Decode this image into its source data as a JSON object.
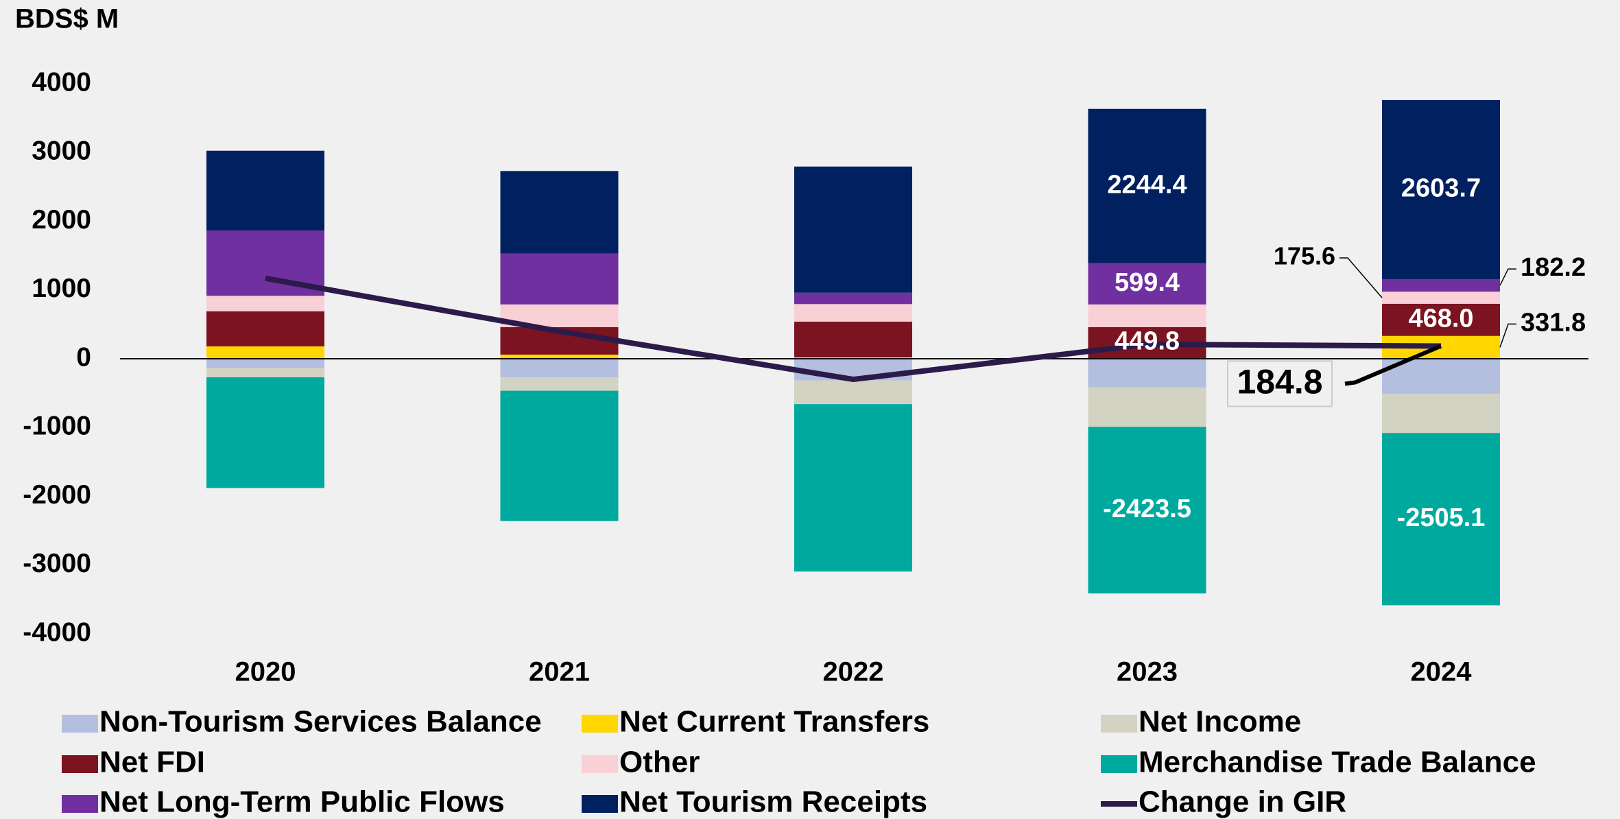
{
  "chart_data": {
    "type": "bar",
    "stacked": true,
    "y_label": "BDS$ M",
    "categories": [
      "2020",
      "2021",
      "2022",
      "2023",
      "2024"
    ],
    "ylim": [
      -4000,
      4000
    ],
    "yticks": [
      4000,
      3000,
      2000,
      1000,
      0,
      -1000,
      -2000,
      -3000,
      -4000
    ],
    "grid": false,
    "series": [
      {
        "name": "Non-Tourism Services Balance",
        "color": "#b4bfe0",
        "values": [
          -135,
          -270,
          -315,
          -420,
          -510
        ]
      },
      {
        "name": "Net Current Transfers",
        "color": "#ffd600",
        "values": [
          180,
          60,
          20,
          10,
          331.8
        ],
        "value_labels": [
          null,
          null,
          null,
          null,
          "331.8"
        ]
      },
      {
        "name": "Net Income",
        "color": "#d3d3c3",
        "values": [
          -135,
          -195,
          -345,
          -570,
          -570
        ]
      },
      {
        "name": "Net FDI",
        "color": "#7b1320",
        "values": [
          510,
          400,
          520,
          449.8,
          468
        ],
        "value_labels": [
          null,
          null,
          null,
          "449.8",
          "468.0"
        ]
      },
      {
        "name": "Other",
        "color": "#f8d0d5",
        "values": [
          225,
          330,
          255,
          330,
          175.6
        ],
        "value_labels": [
          null,
          null,
          null,
          null,
          "175.6"
        ]
      },
      {
        "name": "Merchandise Trade Balance",
        "color": "#00a99d",
        "values": [
          -1610,
          -1895,
          -2435,
          -2423.5,
          -2505.1
        ],
        "value_labels": [
          null,
          null,
          null,
          "-2423.5",
          "-2505.1"
        ]
      },
      {
        "name": "Net Long-Term Public Flows",
        "color": "#7030a0",
        "values": [
          950,
          740,
          165,
          599.4,
          182.2
        ],
        "value_labels": [
          null,
          null,
          null,
          "599.4",
          "182.2"
        ]
      },
      {
        "name": "Net Tourism Receipts",
        "color": "#002060",
        "values": [
          1160,
          1200,
          1835,
          2244.4,
          2603.7
        ],
        "value_labels": [
          null,
          null,
          null,
          "2244.4",
          "2603.7"
        ]
      },
      {
        "name": "Change in GIR",
        "type": "line",
        "color": "#2b1a4a",
        "values": [
          1170,
          400,
          -300,
          210,
          184.8
        ],
        "value_labels": [
          null,
          null,
          null,
          null,
          "184.8"
        ]
      }
    ]
  }
}
